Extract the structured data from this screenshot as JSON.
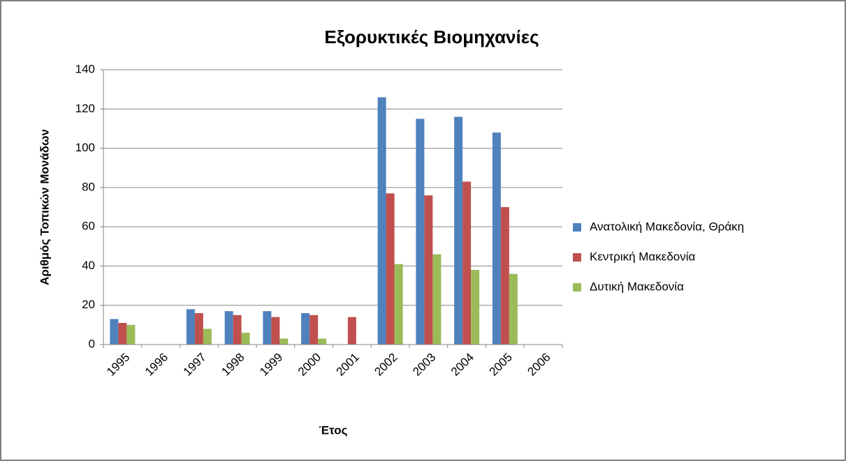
{
  "chart_data": {
    "type": "bar",
    "title": "Εξορυκτικές Βιομηχανίες",
    "x_label": "Έτος",
    "y_label": "Αριθμός Τοπικών Μονάδων",
    "categories": [
      "1995",
      "1996",
      "1997",
      "1998",
      "1999",
      "2000",
      "2001",
      "2002",
      "2003",
      "2004",
      "2005",
      "2006"
    ],
    "series": [
      {
        "name": "Ανατολική Μακεδονία, Θράκη",
        "color": "#4f81bd",
        "values": [
          13,
          null,
          18,
          17,
          17,
          16,
          null,
          126,
          115,
          116,
          108,
          null
        ]
      },
      {
        "name": "Κεντρική Μακεδονία",
        "color": "#c0504d",
        "values": [
          11,
          null,
          16,
          15,
          14,
          15,
          14,
          77,
          76,
          83,
          70,
          null
        ]
      },
      {
        "name": "Δυτική Μακεδονία",
        "color": "#9bbb59",
        "values": [
          10,
          null,
          8,
          6,
          3,
          3,
          null,
          41,
          46,
          38,
          36,
          null
        ]
      }
    ],
    "ylim": [
      0,
      140
    ],
    "yticks": [
      0,
      20,
      40,
      60,
      80,
      100,
      120,
      140
    ],
    "grid": true,
    "legend": "right"
  }
}
